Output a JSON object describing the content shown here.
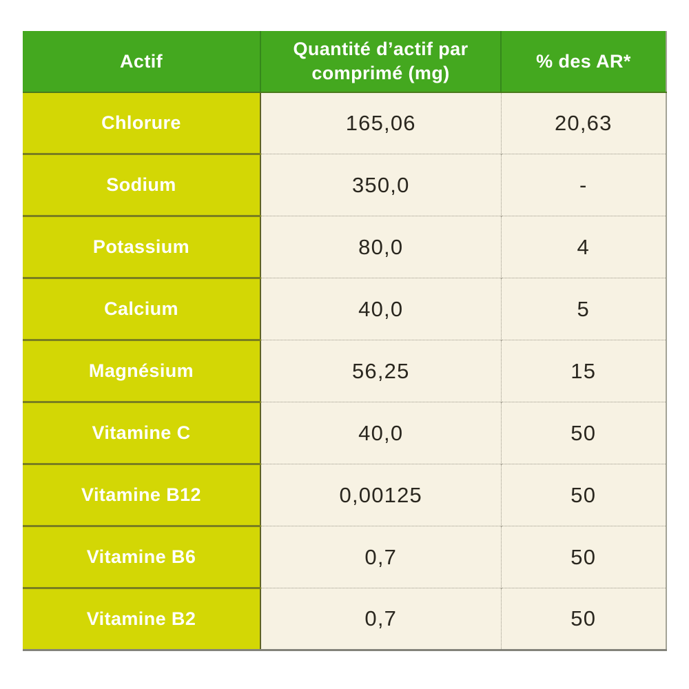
{
  "chart_data": {
    "type": "table",
    "columns": [
      "Actif",
      "Quantité d’actif par comprimé (mg)",
      "% des AR*"
    ],
    "rows": [
      [
        "Chlorure",
        "165,06",
        "20,63"
      ],
      [
        "Sodium",
        "350,0",
        "-"
      ],
      [
        "Potassium",
        "80,0",
        "4"
      ],
      [
        "Calcium",
        "40,0",
        "5"
      ],
      [
        "Magnésium",
        "56,25",
        "15"
      ],
      [
        "Vitamine C",
        "40,0",
        "50"
      ],
      [
        "Vitamine B12",
        "0,00125",
        "50"
      ],
      [
        "Vitamine B6",
        "0,7",
        "50"
      ],
      [
        "Vitamine B2",
        "0,7",
        "50"
      ]
    ]
  },
  "colors": {
    "header_green": "#44a81f",
    "label_yellow": "#d3d705",
    "cell_cream": "#f7f2e3",
    "value_text": "#2a271f",
    "header_text": "#ffffff",
    "olive_divider": "#797e20",
    "dotted_divider": "#9c988a"
  }
}
